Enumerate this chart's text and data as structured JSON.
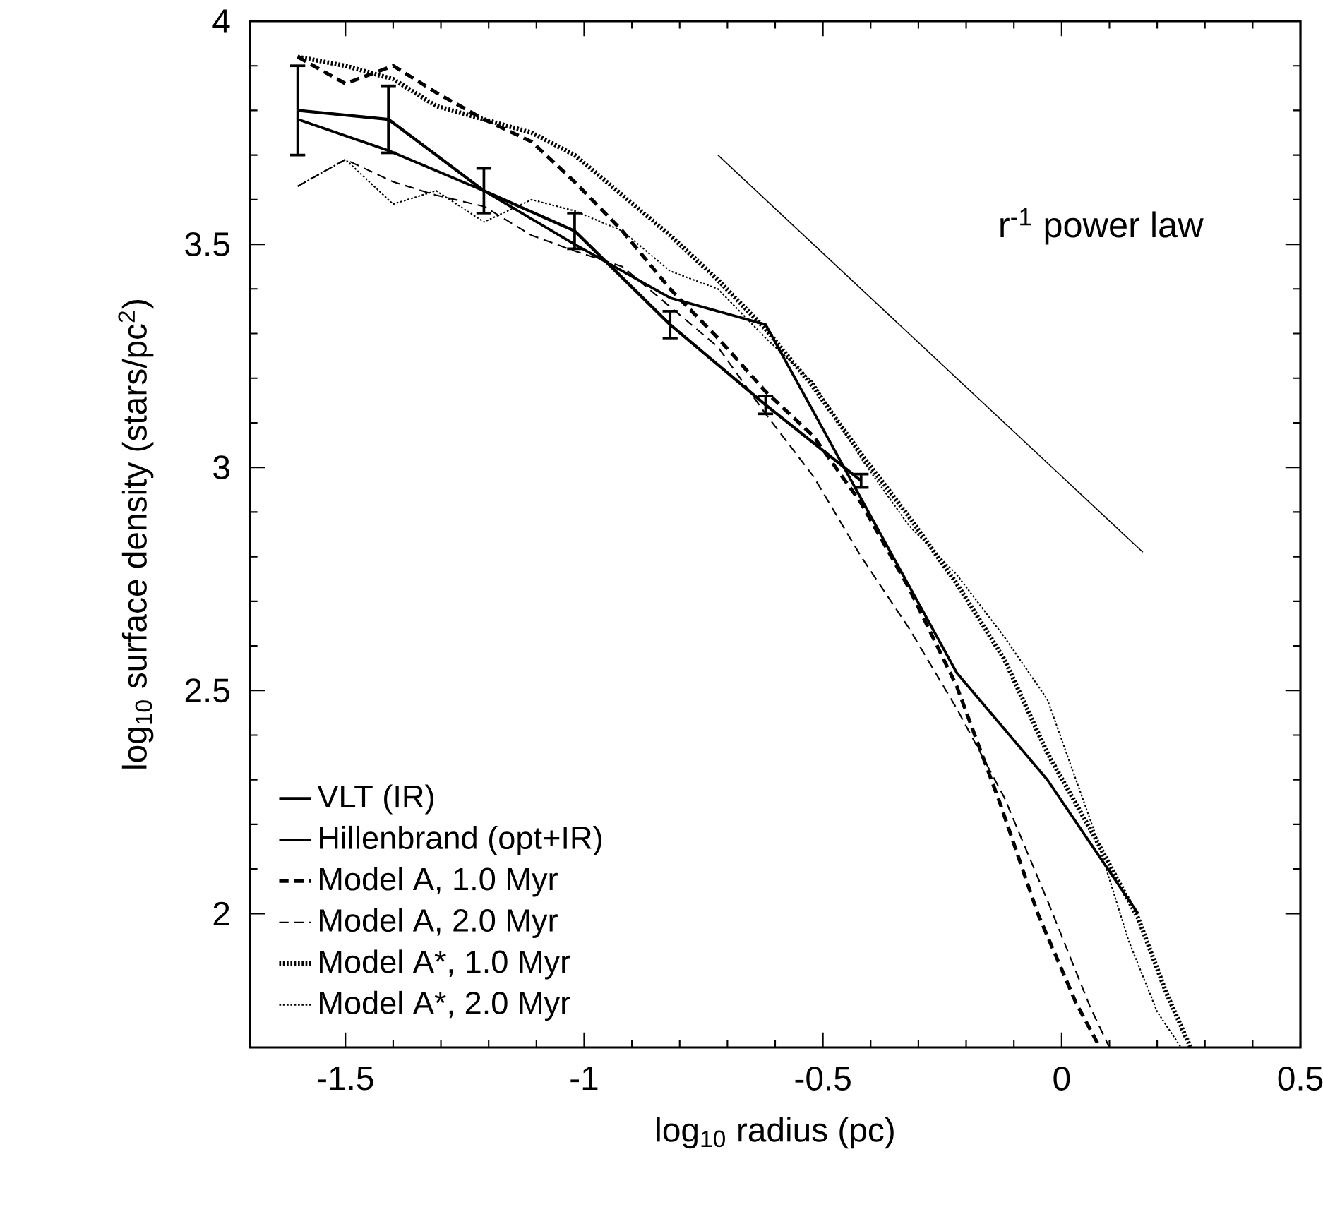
{
  "chart_data": {
    "type": "line",
    "xlabel": "log$_{10}$ radius (pc)",
    "ylabel": "log$_{10}$ surface density (stars/pc$^{2}$)",
    "xlim": [
      -1.7,
      0.5
    ],
    "ylim": [
      1.7,
      4
    ],
    "xticks": [
      -1.5,
      -1,
      -0.5,
      0,
      0.5
    ],
    "yticks": [
      2,
      2.5,
      3,
      3.5,
      4
    ],
    "legend": "bottom left",
    "annotations": [
      "r$^{-1}$ power law"
    ],
    "series": [
      {
        "name": "VLT (IR)",
        "color": "#000000",
        "line_style": "solid",
        "x": [
          -1.6,
          -1.41,
          -1.21,
          -1.02,
          -0.82,
          -0.62,
          -0.42
        ],
        "values": [
          3.8,
          3.78,
          3.62,
          3.53,
          3.32,
          3.14,
          2.97
        ],
        "errors": [
          0.1,
          0.075,
          0.05,
          0.04,
          0.03,
          0.02,
          0.015
        ]
      },
      {
        "name": "Hillenbrand (opt+IR)",
        "color": "#000000",
        "line_style": "solid",
        "x": [
          -1.6,
          -1.41,
          -1.21,
          -1.02,
          -0.82,
          -0.62,
          -0.42,
          -0.22,
          -0.03,
          0.16
        ],
        "values": [
          3.78,
          3.71,
          3.62,
          3.5,
          3.38,
          3.32,
          2.93,
          2.54,
          2.3,
          2.0
        ]
      },
      {
        "name": "Model A, 1.0 Myr",
        "color": "#000000",
        "line_style": "dashed",
        "x": [
          -1.6,
          -1.5,
          -1.4,
          -1.31,
          -1.21,
          -1.11,
          -1.02,
          -0.92,
          -0.82,
          -0.72,
          -0.62,
          -0.52,
          -0.42,
          -0.32,
          -0.22,
          -0.13,
          -0.05,
          0.03,
          0.08
        ],
        "values": [
          3.92,
          3.86,
          3.9,
          3.84,
          3.78,
          3.73,
          3.64,
          3.53,
          3.4,
          3.29,
          3.17,
          3.07,
          2.92,
          2.73,
          2.51,
          2.25,
          2.0,
          1.8,
          1.7
        ]
      },
      {
        "name": "Model A, 2.0 Myr",
        "color": "#000000",
        "line_style": "dashed",
        "x": [
          -1.6,
          -1.5,
          -1.4,
          -1.31,
          -1.21,
          -1.11,
          -1.02,
          -0.92,
          -0.82,
          -0.72,
          -0.62,
          -0.52,
          -0.42,
          -0.32,
          -0.22,
          -0.12,
          -0.03,
          0.06,
          0.1
        ],
        "values": [
          3.63,
          3.69,
          3.64,
          3.61,
          3.585,
          3.52,
          3.485,
          3.45,
          3.36,
          3.27,
          3.12,
          2.98,
          2.8,
          2.64,
          2.46,
          2.26,
          2.03,
          1.79,
          1.7
        ]
      },
      {
        "name": "Model A*, 1.0 Myr",
        "color": "#000000",
        "line_style": "dotted",
        "x": [
          -1.6,
          -1.5,
          -1.4,
          -1.31,
          -1.21,
          -1.11,
          -1.02,
          -0.92,
          -0.82,
          -0.72,
          -0.62,
          -0.52,
          -0.42,
          -0.32,
          -0.22,
          -0.12,
          -0.03,
          0.07,
          0.16,
          0.22,
          0.27
        ],
        "values": [
          3.92,
          3.9,
          3.87,
          3.81,
          3.78,
          3.75,
          3.7,
          3.61,
          3.52,
          3.42,
          3.31,
          3.18,
          3.03,
          2.89,
          2.74,
          2.57,
          2.36,
          2.17,
          1.99,
          1.82,
          1.7
        ]
      },
      {
        "name": "Model A*, 2.0 Myr",
        "color": "#000000",
        "line_style": "dotted",
        "x": [
          -1.6,
          -1.5,
          -1.4,
          -1.31,
          -1.21,
          -1.11,
          -1.02,
          -0.92,
          -0.82,
          -0.72,
          -0.62,
          -0.52,
          -0.42,
          -0.32,
          -0.22,
          -0.12,
          -0.03,
          0.07,
          0.14,
          0.2,
          0.25
        ],
        "values": [
          3.63,
          3.69,
          3.59,
          3.62,
          3.55,
          3.6,
          3.575,
          3.53,
          3.44,
          3.4,
          3.29,
          3.19,
          3.02,
          2.87,
          2.76,
          2.62,
          2.48,
          2.18,
          1.94,
          1.78,
          1.7
        ]
      },
      {
        "color": "#000000",
        "line_style": "solid",
        "x": [
          -0.72,
          0.17
        ],
        "values": [
          3.7,
          2.81
        ]
      }
    ]
  }
}
